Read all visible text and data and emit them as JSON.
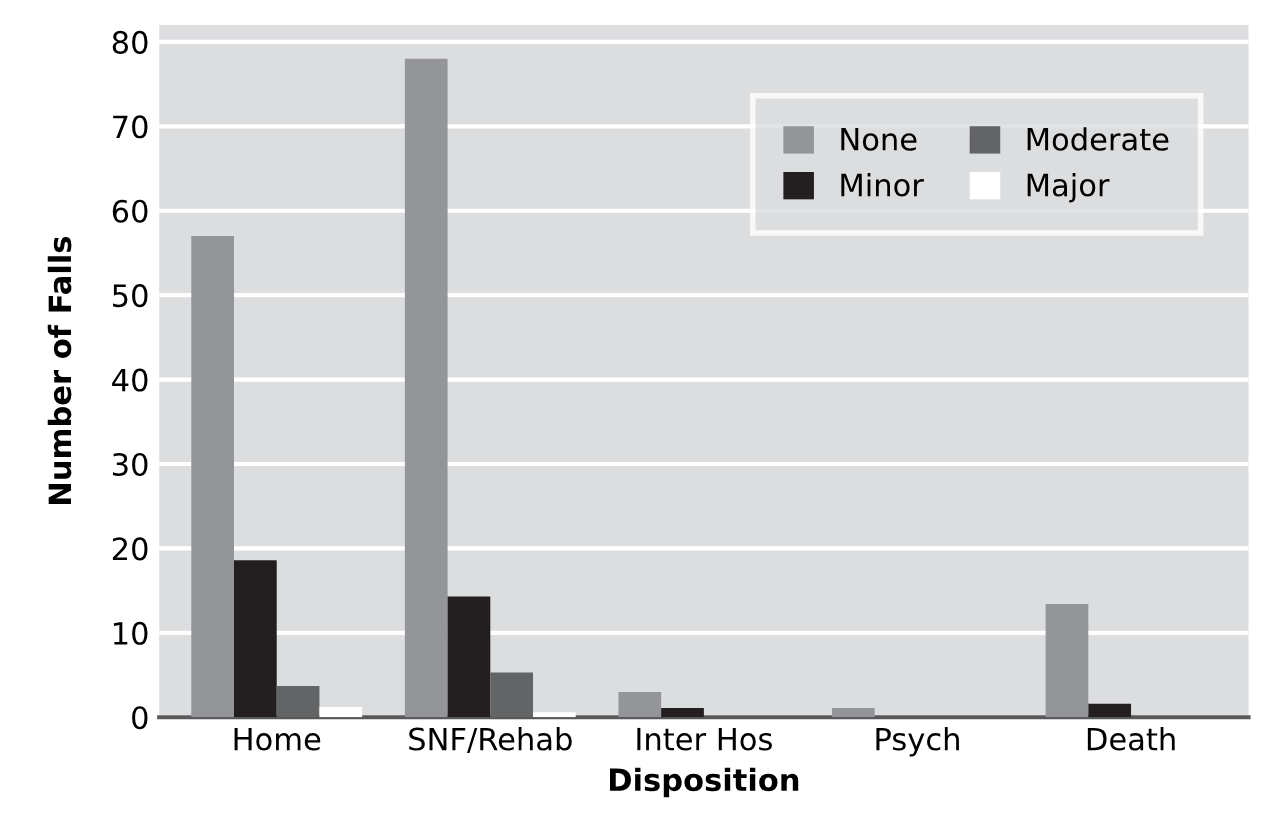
{
  "chart_data": {
    "type": "bar",
    "xlabel": "Disposition",
    "ylabel": "Number of Falls",
    "categories": [
      "Home",
      "SNF/Rehab",
      "Inter Hos",
      "Psych",
      "Death"
    ],
    "series": [
      {
        "name": "None",
        "color": "#939598",
        "values": [
          57,
          78,
          3,
          1.1,
          13.4
        ]
      },
      {
        "name": "Minor",
        "color": "#231f20",
        "values": [
          18.6,
          14.3,
          1.1,
          0,
          1.6
        ]
      },
      {
        "name": "Moderate",
        "color": "#636466",
        "values": [
          3.7,
          5.3,
          0,
          0,
          0
        ]
      },
      {
        "name": "Major",
        "color": "#ffffff",
        "values": [
          1.2,
          0.6,
          0,
          0,
          0
        ]
      }
    ],
    "ylim": [
      0,
      82
    ],
    "yticks": [
      0,
      10,
      20,
      30,
      40,
      50,
      60,
      70,
      80
    ],
    "grid": "y",
    "legend": "top right"
  }
}
